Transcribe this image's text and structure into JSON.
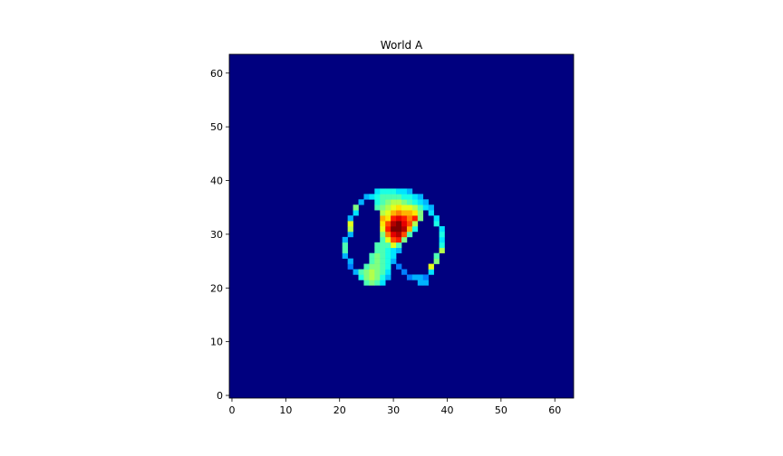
{
  "chart_data": {
    "type": "heatmap",
    "title": "World A",
    "xlabel": "",
    "ylabel": "",
    "colormap": "jet",
    "background_color": "#00007f",
    "grid_size": [
      64,
      64
    ],
    "xlim": [
      -0.5,
      63.5
    ],
    "ylim": [
      63.5,
      -0.5
    ],
    "x_ticks": [
      0,
      10,
      20,
      30,
      40,
      50,
      60
    ],
    "y_ticks": [
      0,
      10,
      20,
      30,
      40,
      50,
      60
    ],
    "grid": false,
    "legend": "none",
    "default_value": 0,
    "value_range": [
      0,
      1
    ],
    "cells": [
      [
        25,
        22,
        0.45
      ],
      [
        26,
        22,
        0.5
      ],
      [
        27,
        22,
        0.45
      ],
      [
        28,
        22,
        0.35
      ],
      [
        35,
        22,
        0.3
      ],
      [
        36,
        22,
        0.3
      ],
      [
        24,
        23,
        0.4
      ],
      [
        25,
        23,
        0.5
      ],
      [
        26,
        23,
        0.55
      ],
      [
        27,
        23,
        0.5
      ],
      [
        28,
        23,
        0.4
      ],
      [
        29,
        23,
        0.3
      ],
      [
        33,
        23,
        0.25
      ],
      [
        34,
        23,
        0.3
      ],
      [
        35,
        23,
        0.3
      ],
      [
        36,
        23,
        0.25
      ],
      [
        23,
        24,
        0.3
      ],
      [
        24,
        24,
        0.45
      ],
      [
        25,
        24,
        0.5
      ],
      [
        26,
        24,
        0.55
      ],
      [
        27,
        24,
        0.5
      ],
      [
        28,
        24,
        0.45
      ],
      [
        29,
        24,
        0.35
      ],
      [
        32,
        24,
        0.25
      ],
      [
        37,
        24,
        0.35
      ],
      [
        22,
        25,
        0.25
      ],
      [
        25,
        25,
        0.45
      ],
      [
        26,
        25,
        0.5
      ],
      [
        27,
        25,
        0.5
      ],
      [
        28,
        25,
        0.45
      ],
      [
        29,
        25,
        0.4
      ],
      [
        31,
        25,
        0.25
      ],
      [
        37,
        25,
        0.6
      ],
      [
        22,
        26,
        0.3
      ],
      [
        26,
        26,
        0.45
      ],
      [
        27,
        26,
        0.5
      ],
      [
        28,
        26,
        0.45
      ],
      [
        29,
        26,
        0.4
      ],
      [
        30,
        26,
        0.3
      ],
      [
        38,
        26,
        0.5
      ],
      [
        21,
        27,
        0.3
      ],
      [
        26,
        27,
        0.45
      ],
      [
        27,
        27,
        0.5
      ],
      [
        28,
        27,
        0.45
      ],
      [
        29,
        27,
        0.4
      ],
      [
        30,
        27,
        0.35
      ],
      [
        38,
        27,
        0.45
      ],
      [
        21,
        28,
        0.45
      ],
      [
        27,
        28,
        0.45
      ],
      [
        28,
        28,
        0.45
      ],
      [
        29,
        28,
        0.4
      ],
      [
        30,
        28,
        0.35
      ],
      [
        31,
        28,
        0.3
      ],
      [
        39,
        28,
        0.55
      ],
      [
        21,
        29,
        0.45
      ],
      [
        27,
        29,
        0.45
      ],
      [
        28,
        29,
        0.45
      ],
      [
        29,
        29,
        0.45
      ],
      [
        30,
        29,
        0.6
      ],
      [
        31,
        29,
        0.45
      ],
      [
        39,
        29,
        0.4
      ],
      [
        21,
        30,
        0.3
      ],
      [
        28,
        30,
        0.45
      ],
      [
        29,
        30,
        0.6
      ],
      [
        30,
        30,
        0.8
      ],
      [
        31,
        30,
        0.85
      ],
      [
        32,
        30,
        0.5
      ],
      [
        39,
        30,
        0.35
      ],
      [
        22,
        31,
        0.3
      ],
      [
        28,
        31,
        0.5
      ],
      [
        29,
        31,
        0.75
      ],
      [
        30,
        31,
        0.9
      ],
      [
        31,
        31,
        0.95
      ],
      [
        32,
        31,
        0.8
      ],
      [
        33,
        31,
        0.45
      ],
      [
        39,
        31,
        0.4
      ],
      [
        22,
        32,
        0.55
      ],
      [
        28,
        32,
        0.6
      ],
      [
        29,
        32,
        0.85
      ],
      [
        30,
        32,
        1.0
      ],
      [
        31,
        32,
        1.0
      ],
      [
        32,
        32,
        0.95
      ],
      [
        33,
        32,
        0.7
      ],
      [
        34,
        32,
        0.4
      ],
      [
        39,
        32,
        0.35
      ],
      [
        22,
        33,
        0.6
      ],
      [
        28,
        33,
        0.65
      ],
      [
        29,
        33,
        0.8
      ],
      [
        30,
        33,
        0.95
      ],
      [
        31,
        33,
        1.0
      ],
      [
        32,
        33,
        0.9
      ],
      [
        33,
        33,
        0.8
      ],
      [
        34,
        33,
        0.55
      ],
      [
        38,
        33,
        0.4
      ],
      [
        22,
        34,
        0.3
      ],
      [
        28,
        34,
        0.7
      ],
      [
        29,
        34,
        0.65
      ],
      [
        30,
        34,
        0.85
      ],
      [
        31,
        34,
        0.9
      ],
      [
        32,
        34,
        0.85
      ],
      [
        33,
        34,
        0.75
      ],
      [
        34,
        34,
        0.85
      ],
      [
        35,
        34,
        0.5
      ],
      [
        38,
        34,
        0.35
      ],
      [
        23,
        35,
        0.35
      ],
      [
        28,
        35,
        0.55
      ],
      [
        29,
        35,
        0.6
      ],
      [
        30,
        35,
        0.7
      ],
      [
        31,
        35,
        0.75
      ],
      [
        32,
        35,
        0.7
      ],
      [
        33,
        35,
        0.7
      ],
      [
        34,
        35,
        0.65
      ],
      [
        35,
        35,
        0.5
      ],
      [
        37,
        35,
        0.35
      ],
      [
        23,
        36,
        0.5
      ],
      [
        27,
        36,
        0.45
      ],
      [
        28,
        36,
        0.5
      ],
      [
        29,
        36,
        0.55
      ],
      [
        30,
        36,
        0.6
      ],
      [
        31,
        36,
        0.65
      ],
      [
        32,
        36,
        0.6
      ],
      [
        33,
        36,
        0.6
      ],
      [
        34,
        36,
        0.55
      ],
      [
        35,
        36,
        0.45
      ],
      [
        36,
        36,
        0.35
      ],
      [
        37,
        36,
        0.3
      ],
      [
        24,
        37,
        0.3
      ],
      [
        27,
        37,
        0.4
      ],
      [
        28,
        37,
        0.45
      ],
      [
        29,
        37,
        0.5
      ],
      [
        30,
        37,
        0.55
      ],
      [
        31,
        37,
        0.55
      ],
      [
        32,
        37,
        0.5
      ],
      [
        33,
        37,
        0.45
      ],
      [
        34,
        37,
        0.4
      ],
      [
        35,
        37,
        0.35
      ],
      [
        36,
        37,
        0.3
      ],
      [
        25,
        38,
        0.3
      ],
      [
        26,
        38,
        0.35
      ],
      [
        27,
        38,
        0.4
      ],
      [
        28,
        38,
        0.45
      ],
      [
        29,
        38,
        0.45
      ],
      [
        30,
        38,
        0.45
      ],
      [
        31,
        38,
        0.45
      ],
      [
        32,
        38,
        0.4
      ],
      [
        33,
        38,
        0.4
      ],
      [
        34,
        38,
        0.35
      ],
      [
        35,
        38,
        0.3
      ],
      [
        27,
        39,
        0.35
      ],
      [
        28,
        39,
        0.4
      ],
      [
        29,
        39,
        0.4
      ],
      [
        30,
        39,
        0.4
      ],
      [
        31,
        39,
        0.35
      ],
      [
        32,
        39,
        0.35
      ],
      [
        33,
        39,
        0.3
      ]
    ]
  }
}
